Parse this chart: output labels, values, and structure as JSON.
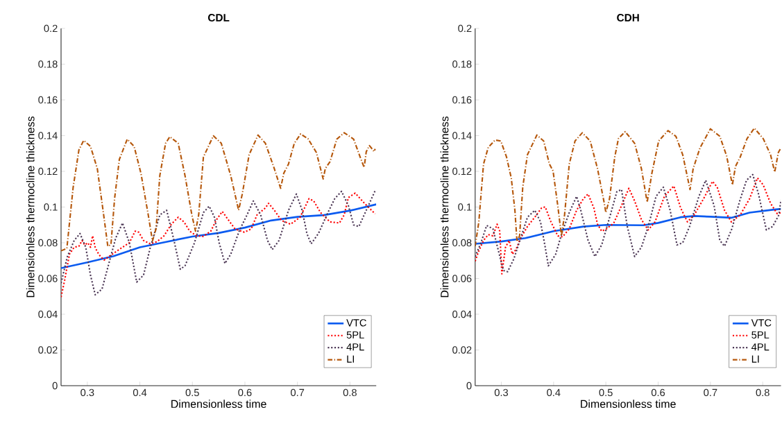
{
  "chart_data": [
    {
      "type": "line",
      "title": "CDL",
      "xlabel": "Dimensionless time",
      "ylabel": "Dimensionless thermocline thickness",
      "xlim": [
        0.25,
        0.85
      ],
      "ylim": [
        0,
        0.2
      ],
      "xticks": [
        0.3,
        0.4,
        0.5,
        0.6,
        0.7,
        0.8
      ],
      "yticks": [
        0,
        0.02,
        0.04,
        0.06,
        0.08,
        0.1,
        0.12,
        0.14,
        0.16,
        0.18,
        0.2
      ],
      "legend": "bottom right",
      "series": [
        {
          "name": "VTC",
          "color": "#0b5bf0",
          "line_style": "solid",
          "x": [
            0.25,
            0.3,
            0.35,
            0.4,
            0.45,
            0.5,
            0.55,
            0.6,
            0.65,
            0.7,
            0.75,
            0.8,
            0.85
          ],
          "values": [
            0.0658,
            0.069,
            0.0725,
            0.0775,
            0.0805,
            0.0835,
            0.0855,
            0.0885,
            0.0925,
            0.0945,
            0.0955,
            0.098,
            0.1015
          ]
        },
        {
          "name": "5PL",
          "color": "#ff0000",
          "line_style": "dotted",
          "x": [
            0.25,
            0.257,
            0.266,
            0.275,
            0.284,
            0.29,
            0.295,
            0.301,
            0.306,
            0.31,
            0.315,
            0.319,
            0.325,
            0.332,
            0.341,
            0.354,
            0.367,
            0.38,
            0.391,
            0.398,
            0.407,
            0.42,
            0.433,
            0.446,
            0.46,
            0.473,
            0.484,
            0.495,
            0.508,
            0.521,
            0.535,
            0.546,
            0.557,
            0.568,
            0.581,
            0.599,
            0.612,
            0.623,
            0.639,
            0.645,
            0.656,
            0.67,
            0.687,
            0.705,
            0.722,
            0.731,
            0.744,
            0.762,
            0.78,
            0.789,
            0.797,
            0.81,
            0.828,
            0.848
          ],
          "values": [
            0.0496,
            0.0593,
            0.0736,
            0.0775,
            0.0781,
            0.0813,
            0.0788,
            0.08,
            0.0775,
            0.0839,
            0.0775,
            0.0749,
            0.0723,
            0.0703,
            0.0723,
            0.0749,
            0.0775,
            0.08,
            0.0865,
            0.0859,
            0.0813,
            0.0794,
            0.0807,
            0.0839,
            0.0904,
            0.0943,
            0.0917,
            0.0865,
            0.0839,
            0.0836,
            0.0865,
            0.093,
            0.0975,
            0.093,
            0.0878,
            0.0859,
            0.0878,
            0.0956,
            0.0995,
            0.1021,
            0.0982,
            0.0924,
            0.0904,
            0.0943,
            0.1047,
            0.1034,
            0.0969,
            0.0917,
            0.0911,
            0.0956,
            0.1053,
            0.1078,
            0.102,
            0.0962
          ]
        },
        {
          "name": "4PL",
          "color": "#4b3654",
          "line_style": "dotted",
          "x": [
            0.25,
            0.262,
            0.275,
            0.286,
            0.297,
            0.306,
            0.315,
            0.328,
            0.341,
            0.354,
            0.367,
            0.38,
            0.394,
            0.407,
            0.42,
            0.438,
            0.451,
            0.464,
            0.477,
            0.486,
            0.504,
            0.521,
            0.532,
            0.542,
            0.551,
            0.562,
            0.573,
            0.59,
            0.604,
            0.616,
            0.63,
            0.643,
            0.652,
            0.665,
            0.683,
            0.698,
            0.709,
            0.718,
            0.726,
            0.74,
            0.758,
            0.771,
            0.784,
            0.797,
            0.807,
            0.817,
            0.825,
            0.848
          ],
          "values": [
            0.0574,
            0.0723,
            0.0813,
            0.0852,
            0.0775,
            0.0619,
            0.0509,
            0.0541,
            0.0684,
            0.0826,
            0.0911,
            0.08,
            0.058,
            0.0619,
            0.0775,
            0.0956,
            0.0982,
            0.0826,
            0.0652,
            0.0671,
            0.08,
            0.0969,
            0.1005,
            0.0943,
            0.08,
            0.0684,
            0.0736,
            0.0872,
            0.0956,
            0.1034,
            0.0956,
            0.0813,
            0.0762,
            0.0813,
            0.0982,
            0.1073,
            0.0982,
            0.0852,
            0.0794,
            0.0852,
            0.0969,
            0.1047,
            0.1088,
            0.1008,
            0.09,
            0.0891,
            0.0943,
            0.1092
          ]
        },
        {
          "name": "LI",
          "color": "#b5570b",
          "line_style": "dashdot",
          "x": [
            0.25,
            0.261,
            0.273,
            0.284,
            0.293,
            0.306,
            0.319,
            0.33,
            0.339,
            0.345,
            0.352,
            0.361,
            0.376,
            0.389,
            0.402,
            0.416,
            0.424,
            0.431,
            0.438,
            0.449,
            0.457,
            0.473,
            0.486,
            0.499,
            0.506,
            0.512,
            0.521,
            0.54,
            0.555,
            0.573,
            0.588,
            0.595,
            0.608,
            0.625,
            0.639,
            0.656,
            0.668,
            0.674,
            0.683,
            0.694,
            0.706,
            0.72,
            0.736,
            0.749,
            0.753,
            0.762,
            0.775,
            0.789,
            0.807,
            0.82,
            0.827,
            0.831,
            0.837,
            0.841,
            0.846,
            0.848
          ],
          "values": [
            0.0755,
            0.0768,
            0.111,
            0.132,
            0.1373,
            0.134,
            0.1215,
            0.098,
            0.078,
            0.079,
            0.105,
            0.1267,
            0.138,
            0.134,
            0.119,
            0.0956,
            0.081,
            0.088,
            0.1176,
            0.1357,
            0.1394,
            0.1357,
            0.1176,
            0.0956,
            0.0865,
            0.0956,
            0.128,
            0.1399,
            0.1357,
            0.1176,
            0.0982,
            0.1073,
            0.1293,
            0.1403,
            0.1357,
            0.1215,
            0.1105,
            0.1189,
            0.1241,
            0.1357,
            0.1409,
            0.1383,
            0.1306,
            0.1157,
            0.1215,
            0.1254,
            0.138,
            0.1416,
            0.138,
            0.1275,
            0.1222,
            0.131,
            0.1344,
            0.133,
            0.131,
            0.1326
          ]
        }
      ]
    },
    {
      "type": "line",
      "title": "CDH",
      "xlabel": "Dimensionless time",
      "ylabel": "Dimensionless thermocline thickness",
      "xlim": [
        0.25,
        0.835
      ],
      "ylim": [
        0,
        0.2
      ],
      "xticks": [
        0.3,
        0.4,
        0.5,
        0.6,
        0.7,
        0.8
      ],
      "yticks": [
        0,
        0.02,
        0.04,
        0.06,
        0.08,
        0.1,
        0.12,
        0.14,
        0.16,
        0.18,
        0.2
      ],
      "legend": "bottom right",
      "series": [
        {
          "name": "VTC",
          "color": "#0b5bf0",
          "line_style": "solid",
          "x": [
            0.25,
            0.3,
            0.346,
            0.4,
            0.457,
            0.5,
            0.572,
            0.6,
            0.643,
            0.669,
            0.7,
            0.74,
            0.775,
            0.819,
            0.835
          ],
          "values": [
            0.0794,
            0.0807,
            0.0826,
            0.0865,
            0.0891,
            0.09,
            0.0898,
            0.0911,
            0.0943,
            0.095,
            0.0946,
            0.094,
            0.0969,
            0.0985,
            0.099
          ]
        },
        {
          "name": "5PL",
          "color": "#ff0000",
          "line_style": "dotted",
          "x": [
            0.25,
            0.257,
            0.266,
            0.275,
            0.284,
            0.292,
            0.297,
            0.301,
            0.308,
            0.315,
            0.321,
            0.328,
            0.337,
            0.35,
            0.364,
            0.377,
            0.384,
            0.395,
            0.408,
            0.417,
            0.43,
            0.444,
            0.457,
            0.466,
            0.477,
            0.484,
            0.492,
            0.501,
            0.515,
            0.528,
            0.544,
            0.555,
            0.568,
            0.581,
            0.594,
            0.612,
            0.63,
            0.643,
            0.656,
            0.669,
            0.687,
            0.704,
            0.713,
            0.727,
            0.74,
            0.757,
            0.775,
            0.79,
            0.801,
            0.815,
            0.828,
            0.835
          ],
          "values": [
            0.0697,
            0.0755,
            0.0813,
            0.0846,
            0.0839,
            0.0904,
            0.0865,
            0.0626,
            0.0775,
            0.0813,
            0.0736,
            0.0762,
            0.0826,
            0.0891,
            0.0943,
            0.0995,
            0.1001,
            0.0917,
            0.0839,
            0.0833,
            0.0878,
            0.0982,
            0.1047,
            0.1073,
            0.0995,
            0.0904,
            0.0865,
            0.0878,
            0.091,
            0.0995,
            0.1105,
            0.1034,
            0.093,
            0.0872,
            0.0917,
            0.106,
            0.1118,
            0.0995,
            0.0917,
            0.0956,
            0.1047,
            0.1144,
            0.1111,
            0.0982,
            0.0917,
            0.0956,
            0.1047,
            0.1163,
            0.1124,
            0.1021,
            0.0962,
            0.0969
          ]
        },
        {
          "name": "4PL",
          "color": "#4b3654",
          "line_style": "dotted",
          "x": [
            0.25,
            0.261,
            0.272,
            0.284,
            0.295,
            0.304,
            0.312,
            0.324,
            0.337,
            0.35,
            0.364,
            0.375,
            0.384,
            0.39,
            0.404,
            0.417,
            0.43,
            0.444,
            0.452,
            0.466,
            0.479,
            0.492,
            0.506,
            0.521,
            0.53,
            0.541,
            0.555,
            0.568,
            0.581,
            0.596,
            0.61,
            0.623,
            0.636,
            0.647,
            0.66,
            0.678,
            0.691,
            0.707,
            0.718,
            0.727,
            0.741,
            0.756,
            0.769,
            0.781,
            0.792,
            0.807,
            0.819,
            0.831,
            0.835
          ],
          "values": [
            0.0723,
            0.08,
            0.0897,
            0.0878,
            0.0749,
            0.0645,
            0.0638,
            0.071,
            0.0826,
            0.0943,
            0.0982,
            0.0917,
            0.0775,
            0.0671,
            0.0736,
            0.0865,
            0.0969,
            0.106,
            0.0982,
            0.0813,
            0.0723,
            0.0788,
            0.093,
            0.1086,
            0.1098,
            0.0891,
            0.0723,
            0.0775,
            0.0891,
            0.106,
            0.1111,
            0.0982,
            0.0788,
            0.08,
            0.0891,
            0.106,
            0.115,
            0.1008,
            0.0813,
            0.0781,
            0.0878,
            0.1034,
            0.115,
            0.1182,
            0.1073,
            0.0872,
            0.0891,
            0.0956,
            0.104
          ]
        },
        {
          "name": "LI",
          "color": "#b5570b",
          "line_style": "dashdot",
          "x": [
            0.25,
            0.257,
            0.266,
            0.275,
            0.288,
            0.299,
            0.31,
            0.319,
            0.326,
            0.33,
            0.335,
            0.341,
            0.35,
            0.368,
            0.381,
            0.392,
            0.399,
            0.408,
            0.415,
            0.421,
            0.43,
            0.441,
            0.455,
            0.47,
            0.484,
            0.497,
            0.5,
            0.507,
            0.517,
            0.524,
            0.537,
            0.555,
            0.568,
            0.579,
            0.588,
            0.601,
            0.619,
            0.634,
            0.647,
            0.661,
            0.667,
            0.68,
            0.7,
            0.718,
            0.731,
            0.742,
            0.748,
            0.757,
            0.77,
            0.784,
            0.801,
            0.815,
            0.823,
            0.83,
            0.835
          ],
          "values": [
            0.0781,
            0.0917,
            0.1241,
            0.1334,
            0.1375,
            0.137,
            0.128,
            0.1163,
            0.0982,
            0.0807,
            0.0839,
            0.1111,
            0.1293,
            0.1403,
            0.137,
            0.1241,
            0.1202,
            0.1008,
            0.0839,
            0.0956,
            0.1241,
            0.137,
            0.1416,
            0.137,
            0.1215,
            0.1021,
            0.0969,
            0.1047,
            0.128,
            0.1383,
            0.1422,
            0.1357,
            0.1215,
            0.1027,
            0.1189,
            0.137,
            0.1428,
            0.1396,
            0.1293,
            0.1098,
            0.1215,
            0.1331,
            0.1438,
            0.1396,
            0.1286,
            0.1124,
            0.1228,
            0.128,
            0.1383,
            0.1442,
            0.1383,
            0.1293,
            0.1196,
            0.1306,
            0.1332
          ]
        }
      ]
    }
  ]
}
